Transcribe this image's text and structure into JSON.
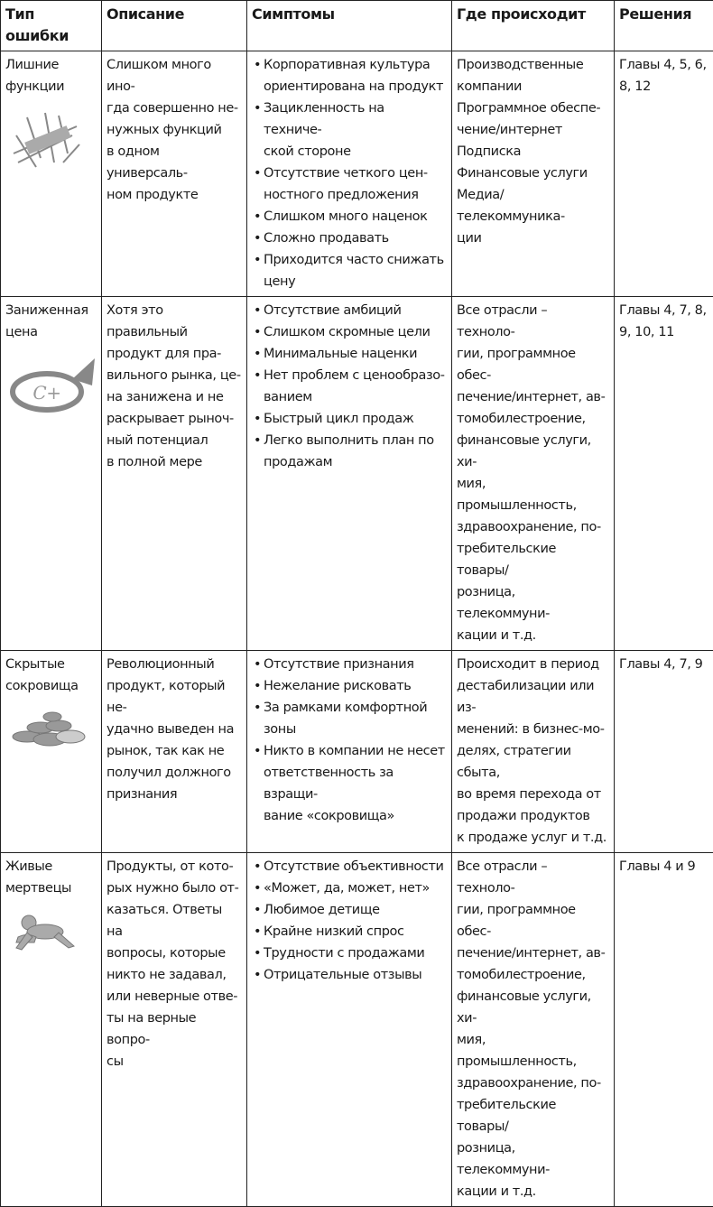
{
  "headers": [
    "Тип ошибки",
    "Описание",
    "Симптомы",
    "Где происходит",
    "Решения"
  ],
  "rows": [
    {
      "type": "Лишние\nфункции",
      "icon": "swiss-army-knife-icon",
      "description": "Слишком много ино-\nгда совершенно не-\nнужных функций\nв одном универсаль-\nном продукте",
      "symptoms": [
        "Корпоративная культура\nориентирована на продукт",
        "Зацикленность на техниче-\nской стороне",
        "Отсутствие четкого цен-\nностного предложения",
        "Слишком много наценок",
        "Сложно продавать",
        "Приходится часто снижать\nцену"
      ],
      "where": "Производственные\nкомпании\nПрограммное обеспе-\nчение/интернет\nПодписка\nФинансовые услуги\nМедиа/телекоммуника-\nции",
      "solutions": "Главы 4, 5, 6,\n8, 12"
    },
    {
      "type": "Заниженная\nцена",
      "icon": "grade-c-plus-icon",
      "icon_text": "C+",
      "description": "Хотя это правильный\nпродукт для пра-\nвильного рынка, це-\nна занижена и не\nраскрывает рыноч-\nный потенциал\nв полной мере",
      "symptoms": [
        "Отсутствие амбиций",
        "Слишком скромные цели",
        "Минимальные наценки",
        "Нет проблем с ценообразо-\nванием",
        "Быстрый цикл продаж",
        "Легко выполнить план по\nпродажам"
      ],
      "where": "Все отрасли – техноло-\nгии, программное обес-\nпечение/интернет, ав-\nтомобилестроение,\nфинансовые услуги, хи-\nмия, промышленность,\nздравоохранение, по-\nтребительские товары/\nрозница, телекоммуни-\nкации и т.д.",
      "solutions": "Главы 4, 7, 8,\n9, 10, 11"
    },
    {
      "type": "Скрытые\nсокровища",
      "icon": "pebbles-icon",
      "description": "Революционный\nпродукт, который не-\nудачно выведен на\nрынок, так как не\nполучил должного\nпризнания",
      "symptoms": [
        "Отсутствие признания",
        "Нежелание рисковать",
        "За рамками комфортной\nзоны",
        "Никто в компании не несет\nответственность за взращи-\nвание «сокровища»"
      ],
      "where": "Происходит в период\nдестабилизации или из-\nменений: в бизнес-мо-\nделях, стратегии сбыта,\nво время перехода от\nпродажи продуктов\nк продаже услуг и т.д.",
      "solutions": "Главы 4, 7, 9"
    },
    {
      "type": "Живые\nмертвецы",
      "icon": "crawling-figure-icon",
      "description": "Продукты, от кото-\nрых нужно было от-\nказаться. Ответы на\nвопросы, которые\nникто не задавал,\nили неверные отве-\nты на верные вопро-\nсы",
      "symptoms": [
        "Отсутствие объективности",
        "«Может, да, может, нет»",
        "Любимое детище",
        "Крайне низкий спрос",
        "Трудности с продажами",
        "Отрицательные отзывы"
      ],
      "where": "Все отрасли – техноло-\nгии, программное обес-\nпечение/интернет, ав-\nтомобилестроение,\nфинансовые услуги, хи-\nмия, промышленность,\nздравоохранение, по-\nтребительские товары/\nрозница, телекоммуни-\nкации и т.д.",
      "solutions": "Главы 4 и 9"
    }
  ]
}
